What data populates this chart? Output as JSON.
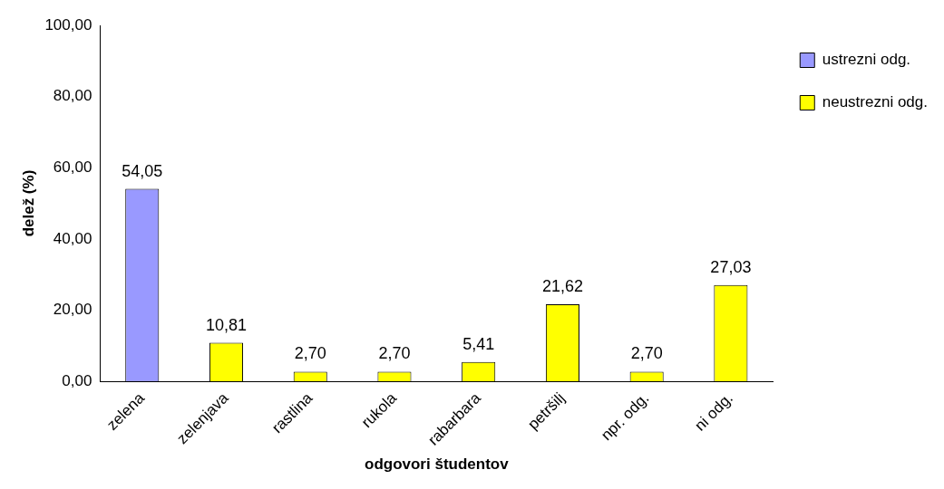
{
  "chart_data": {
    "type": "bar",
    "xlabel": "odgovori študentov",
    "ylabel": "delež (%)",
    "categories": [
      "zelena",
      "zelenjava",
      "rastlina",
      "rukola",
      "rabarbara",
      "petršilj",
      "npr. odg.",
      "ni odg."
    ],
    "series": [
      {
        "name": "ustrezni odg.",
        "color": "#9999ff",
        "values": [
          54.05,
          null,
          null,
          null,
          null,
          null,
          null,
          null
        ],
        "value_labels": [
          "54,05",
          null,
          null,
          null,
          null,
          null,
          null,
          null
        ]
      },
      {
        "name": "neustrezni odg.",
        "color": "#ffff00",
        "values": [
          null,
          10.81,
          2.7,
          2.7,
          5.41,
          21.62,
          2.7,
          27.03
        ],
        "value_labels": [
          null,
          "10,81",
          "2,70",
          "2,70",
          "5,41",
          "21,62",
          "2,70",
          "27,03"
        ]
      }
    ],
    "ylim": [
      0,
      100
    ],
    "yticks": [
      {
        "value": 0,
        "label": "0,00"
      },
      {
        "value": 20,
        "label": "20,00"
      },
      {
        "value": 40,
        "label": "40,00"
      },
      {
        "value": 60,
        "label": "60,00"
      },
      {
        "value": 80,
        "label": "80,00"
      },
      {
        "value": 100,
        "label": "100,00"
      }
    ],
    "grid": false,
    "legend": "top right"
  }
}
